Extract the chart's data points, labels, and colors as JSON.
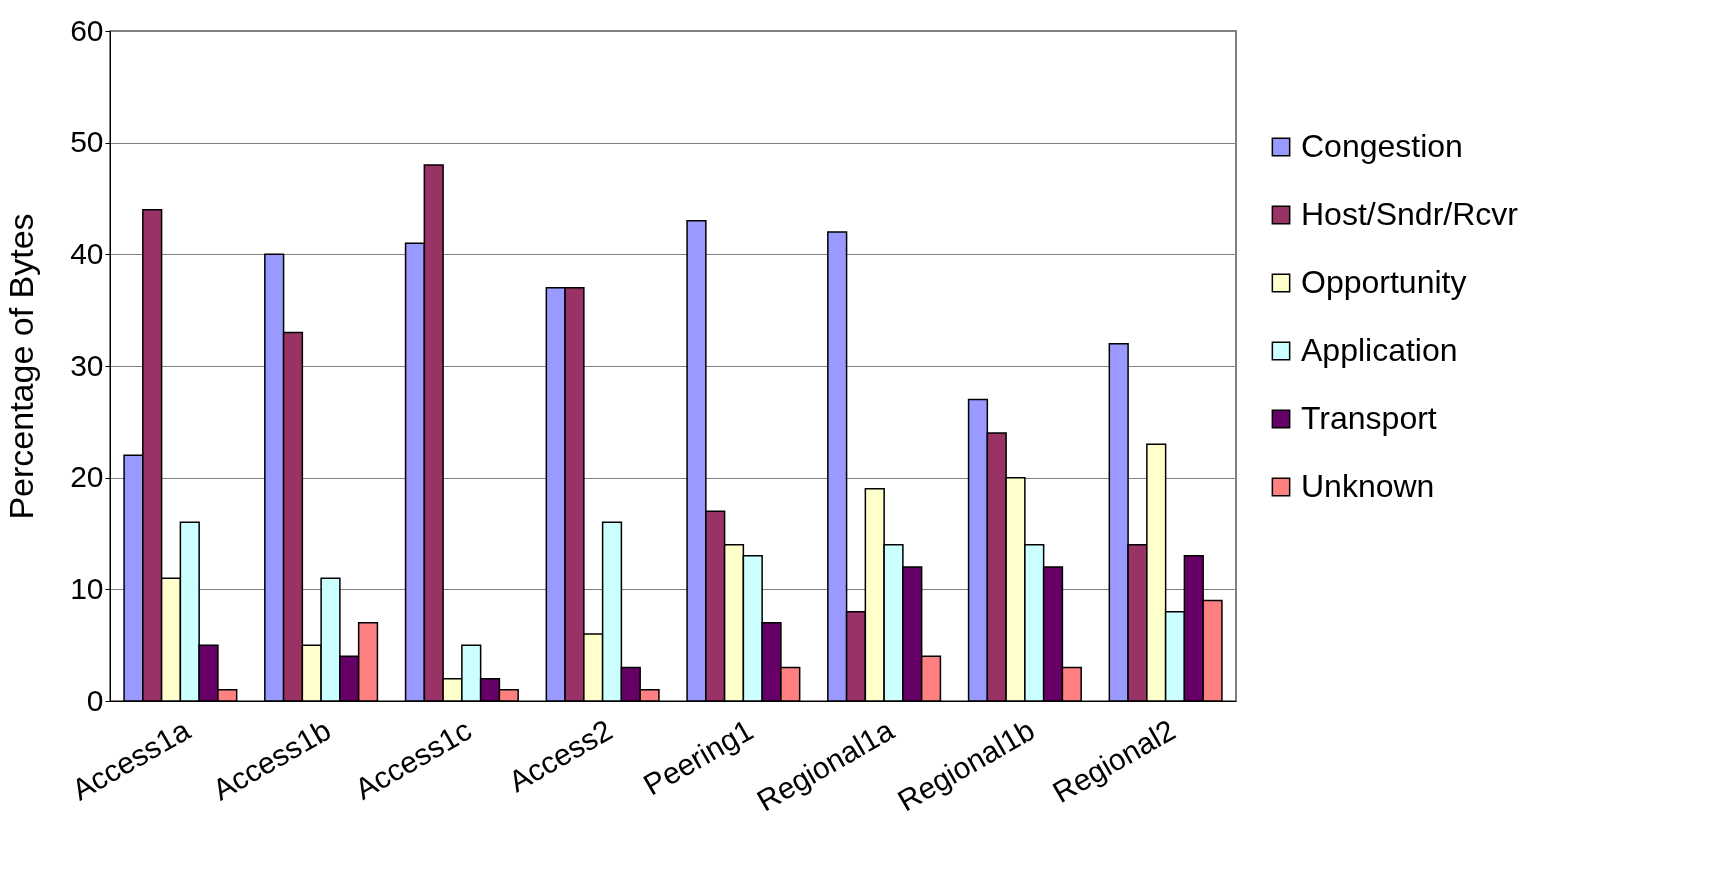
{
  "chart_data": {
    "type": "bar",
    "ylabel": "Percentage of Bytes",
    "categories": [
      "Access1a",
      "Access1b",
      "Access1c",
      "Access2",
      "Peering1",
      "Regional1a",
      "Regional1b",
      "Regional2"
    ],
    "series": [
      {
        "name": "Congestion",
        "color": "#9999ff",
        "values": [
          22,
          40,
          41,
          37,
          43,
          42,
          27,
          32
        ]
      },
      {
        "name": "Host/Sndr/Rcvr",
        "color": "#993366",
        "values": [
          44,
          33,
          48,
          37,
          17,
          8,
          24,
          14
        ]
      },
      {
        "name": "Opportunity",
        "color": "#ffffcc",
        "values": [
          11,
          5,
          2,
          6,
          14,
          19,
          20,
          23
        ]
      },
      {
        "name": "Application",
        "color": "#ccffff",
        "values": [
          16,
          11,
          5,
          16,
          13,
          14,
          14,
          8
        ]
      },
      {
        "name": "Transport",
        "color": "#660066",
        "values": [
          5,
          4,
          2,
          3,
          7,
          12,
          12,
          13
        ]
      },
      {
        "name": "Unknown",
        "color": "#ff8080",
        "values": [
          1,
          7,
          1,
          1,
          3,
          4,
          3,
          9
        ]
      }
    ],
    "ylim": [
      0,
      60
    ],
    "yticks": [
      0,
      10,
      20,
      30,
      40,
      50,
      60
    ],
    "grid": "y",
    "legend": "right"
  }
}
